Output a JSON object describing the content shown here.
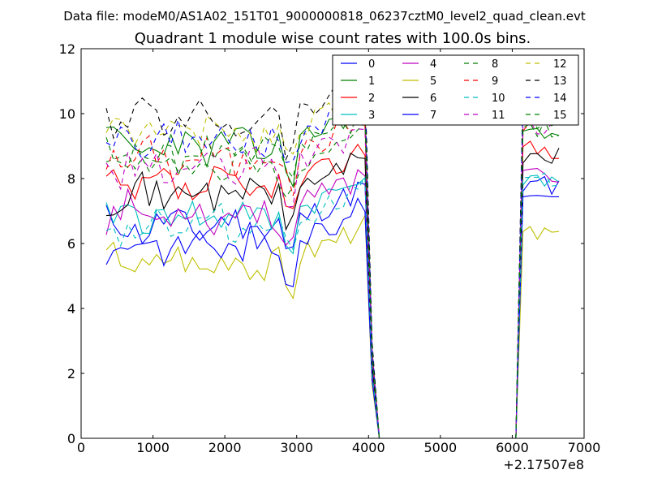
{
  "chart_data": {
    "type": "line",
    "suptitle": "Data file: modeM0/AS1A02_151T01_9000000818_06237cztM0_level2_quad_clean.evt",
    "title": "Quadrant 1 module wise count rates with 100.0s bins.",
    "xlabel": "",
    "ylabel": "",
    "x_offset_label": "+2.17507e8",
    "xlim": [
      0,
      7000
    ],
    "ylim": [
      0,
      12
    ],
    "xticks": [
      "0",
      "1000",
      "2000",
      "3000",
      "4000",
      "5000",
      "6000",
      "7000"
    ],
    "yticks": [
      "0",
      "2",
      "4",
      "6",
      "8",
      "10",
      "12"
    ],
    "grid": false,
    "legend_position": "top-right",
    "legend_columns": 4,
    "x": [
      350,
      450,
      550,
      650,
      750,
      850,
      950,
      1050,
      1150,
      1250,
      1350,
      1450,
      1550,
      1650,
      1750,
      1850,
      1950,
      2050,
      2150,
      2250,
      2350,
      2450,
      2550,
      2650,
      2750,
      2850,
      2950,
      3050,
      3150,
      3250,
      3350,
      3450,
      3550,
      3650,
      3750,
      3850,
      3950,
      4050,
      4150,
      4250,
      4350,
      4450,
      4550,
      4650,
      4750,
      4850,
      4950,
      5050,
      5150,
      5250,
      5350,
      5450,
      5550,
      5650,
      5750,
      5850,
      5950,
      6050,
      6150,
      6250,
      6350,
      6450,
      6550,
      6650
    ],
    "series": [
      {
        "name": "0",
        "color": "#0000ff",
        "dash": "solid",
        "base": 6.55,
        "high": 7.8,
        "seed": 11
      },
      {
        "name": "1",
        "color": "#008000",
        "dash": "solid",
        "base": 9.0,
        "high": 9.3,
        "seed": 23
      },
      {
        "name": "2",
        "color": "#ff0000",
        "dash": "solid",
        "base": 7.7,
        "high": 8.9,
        "seed": 37
      },
      {
        "name": "3",
        "color": "#00bfbf",
        "dash": "solid",
        "base": 6.85,
        "high": 8.0,
        "seed": 41
      },
      {
        "name": "4",
        "color": "#bf00bf",
        "dash": "solid",
        "base": 6.95,
        "high": 8.1,
        "seed": 53
      },
      {
        "name": "5",
        "color": "#bfbf00",
        "dash": "solid",
        "base": 5.45,
        "high": 6.3,
        "seed": 67
      },
      {
        "name": "6",
        "color": "#000000",
        "dash": "solid",
        "base": 7.55,
        "high": 8.7,
        "seed": 71
      },
      {
        "name": "7",
        "color": "#0000ff",
        "dash": "solid",
        "base": 5.95,
        "high": 7.3,
        "seed": 83
      },
      {
        "name": "8",
        "color": "#008000",
        "dash": "dashed",
        "base": 8.4,
        "high": 9.5,
        "seed": 97
      },
      {
        "name": "9",
        "color": "#ff0000",
        "dash": "dashed",
        "base": 8.65,
        "high": 9.7,
        "seed": 101
      },
      {
        "name": "10",
        "color": "#00bfbf",
        "dash": "dashed",
        "base": 6.6,
        "high": 7.9,
        "seed": 113
      },
      {
        "name": "11",
        "color": "#bf00bf",
        "dash": "dashed",
        "base": 8.3,
        "high": 9.6,
        "seed": 127
      },
      {
        "name": "12",
        "color": "#bfbf00",
        "dash": "dashed",
        "base": 9.45,
        "high": 10.6,
        "seed": 131
      },
      {
        "name": "13",
        "color": "#000000",
        "dash": "dashed",
        "base": 9.85,
        "high": 11.0,
        "seed": 139
      },
      {
        "name": "14",
        "color": "#0000ff",
        "dash": "dashed",
        "base": 9.15,
        "high": 10.5,
        "seed": 149
      },
      {
        "name": "15",
        "color": "#008000",
        "dash": "dashed",
        "base": 8.7,
        "high": 9.8,
        "seed": 157
      }
    ]
  }
}
